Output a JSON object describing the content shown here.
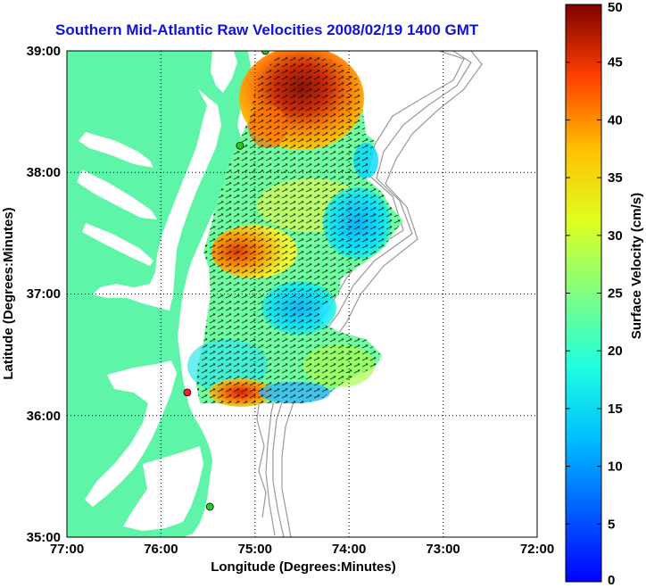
{
  "title": "Southern Mid-Atlantic Raw Velocities 2008/02/19 1400 GMT",
  "map": {
    "x_label": "Longitude (Degrees:Minutes)",
    "y_label": "Latitude (Degrees:Minutes)",
    "lon_range": [
      -77.0,
      -72.0
    ],
    "lat_range": [
      35.0,
      39.0
    ],
    "lon_ticks": [
      "77:00",
      "76:00",
      "75:00",
      "74:00",
      "73:00",
      "72:00"
    ],
    "lat_ticks": [
      "39:00",
      "38:00",
      "37:00",
      "36:00",
      "35:00"
    ],
    "grid": "dotted",
    "land_color": "#5ef5a8",
    "contour_color": "#999999",
    "stations": [
      {
        "lon": -74.89,
        "lat": 39.0,
        "color": "#22cc22"
      },
      {
        "lon": -75.16,
        "lat": 38.22,
        "color": "#22cc22"
      },
      {
        "lon": -75.72,
        "lat": 36.19,
        "color": "#ee2222"
      },
      {
        "lon": -75.48,
        "lat": 35.25,
        "color": "#22cc22"
      }
    ]
  },
  "colorbar": {
    "label": "Surface Velocity (cm/s)",
    "ticks": [
      "0",
      "5",
      "10",
      "15",
      "20",
      "25",
      "30",
      "35",
      "40",
      "45",
      "50"
    ],
    "range": [
      0,
      50
    ],
    "colormap": "jet"
  }
}
